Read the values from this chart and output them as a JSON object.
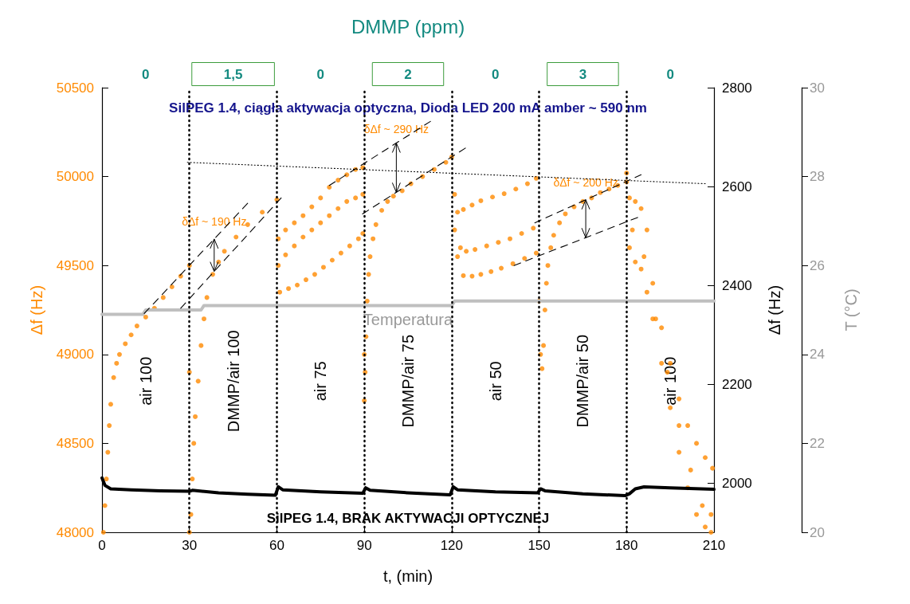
{
  "chart_data": {
    "type": "scatter",
    "title": "DMMP (ppm)",
    "xlabel": "t, (min)",
    "ylabel": "Δf (Hz)",
    "y2label": "Δf (Hz)",
    "y3label": "T (°C)",
    "xlim": [
      0,
      210
    ],
    "xticks": [
      0,
      30,
      60,
      90,
      120,
      150,
      180,
      210
    ],
    "ylim": [
      48000,
      50500
    ],
    "yticks": [
      48000,
      48500,
      49000,
      49500,
      50000,
      50500
    ],
    "y2lim": [
      1900,
      2800
    ],
    "y2ticks": [
      2000,
      2200,
      2400,
      2600,
      2800
    ],
    "y3lim": [
      20,
      30
    ],
    "y3ticks": [
      20,
      22,
      24,
      26,
      28,
      30
    ],
    "series": [
      {
        "color": "#ff8a00",
        "marker": "circle",
        "x": [
          0.5,
          1,
          1.5,
          2,
          2.5,
          3,
          4,
          5,
          6,
          8,
          10,
          12,
          15,
          18,
          21,
          24,
          27,
          30,
          30,
          30,
          30.5,
          31,
          31.5,
          32,
          33,
          34,
          35,
          36,
          38,
          40,
          42,
          46,
          50,
          55,
          60,
          60.5,
          63,
          66,
          69,
          72,
          75,
          78,
          81,
          84,
          87,
          89.5,
          60.5,
          63,
          66,
          69,
          72,
          75,
          78,
          81,
          84,
          87,
          89.5,
          61,
          64,
          67,
          70,
          73,
          76,
          79,
          82,
          85,
          88,
          89.5,
          90,
          90,
          90.3,
          90.6,
          91,
          91.5,
          92,
          93,
          94,
          96,
          98,
          100,
          103,
          106,
          110,
          114,
          118,
          120,
          121,
          122,
          124,
          127,
          130,
          134,
          138,
          142,
          146,
          149,
          121,
          123,
          125,
          128,
          132,
          136,
          140,
          144,
          148,
          122,
          124,
          127,
          130,
          133.5,
          137,
          141,
          145,
          149,
          150,
          150.5,
          151,
          151.5,
          152,
          152.5,
          153,
          154,
          155,
          157,
          159,
          162,
          165,
          168,
          171,
          174,
          177,
          180,
          180,
          181,
          183,
          185,
          187,
          189,
          192,
          195,
          198,
          201,
          204,
          207,
          209.5,
          182,
          186,
          190,
          194,
          198,
          202,
          206,
          209,
          181,
          183,
          185,
          187,
          189,
          192,
          195,
          198,
          201,
          204,
          207,
          209
        ],
        "values": [
          48000,
          48150,
          48300,
          48450,
          48600,
          48720,
          48870,
          48950,
          49000,
          49060,
          49110,
          49160,
          49210,
          49260,
          49320,
          49380,
          49440,
          49500,
          48000,
          48900,
          48100,
          48300,
          48500,
          48650,
          48850,
          49050,
          49200,
          49320,
          49450,
          49520,
          49580,
          49660,
          49730,
          49800,
          49870,
          49650,
          49700,
          49740,
          49780,
          49830,
          49880,
          49940,
          49980,
          50010,
          50040,
          50050,
          49500,
          49560,
          49610,
          49660,
          49700,
          49740,
          49780,
          49820,
          49860,
          49880,
          49900,
          49350,
          49370,
          49390,
          49420,
          49450,
          49490,
          49530,
          49570,
          49610,
          49650,
          49680,
          48740,
          49000,
          48900,
          49100,
          49300,
          49450,
          49550,
          49650,
          49730,
          49810,
          49860,
          49890,
          49920,
          49960,
          50000,
          50040,
          50080,
          50110,
          49900,
          49800,
          49815,
          49840,
          49864,
          49885,
          49904,
          49930,
          49960,
          49990,
          49700,
          49600,
          49580,
          49590,
          49610,
          49630,
          49650,
          49680,
          49710,
          49550,
          49443,
          49440,
          49450,
          49466,
          49485,
          49510,
          49540,
          49570,
          49300,
          49000,
          48920,
          49050,
          49250,
          49400,
          49500,
          49600,
          49670,
          49740,
          49790,
          49830,
          49860,
          49880,
          49910,
          49930,
          49950,
          49970,
          50020,
          49880,
          49860,
          49820,
          49700,
          49400,
          49150,
          48950,
          48750,
          48600,
          48500,
          48420,
          48360,
          49700,
          49550,
          49200,
          48900,
          48600,
          48350,
          48150,
          48100,
          49600,
          49520,
          49480,
          49350,
          49200,
          48950,
          48700,
          48450,
          48250,
          48100,
          48030,
          48000
        ]
      },
      {
        "type": "line",
        "axis": "y2",
        "color": "#000000",
        "marker": "none",
        "line_style": "solid",
        "x": [
          0,
          1,
          3,
          10,
          20,
          30,
          31,
          40,
          50,
          59.5,
          60.5,
          62,
          75,
          89.5,
          90.5,
          92,
          105,
          119.5,
          120.5,
          122,
          135,
          149.5,
          150.5,
          152,
          165,
          179.5,
          181,
          183,
          186,
          195,
          210
        ],
        "values": [
          2010,
          1995,
          1988,
          1986,
          1984,
          1983,
          1985,
          1980,
          1977,
          1975,
          1992,
          1986,
          1982,
          1979,
          1990,
          1985,
          1980,
          1976,
          1992,
          1986,
          1982,
          1980,
          1988,
          1984,
          1978,
          1974,
          1978,
          1988,
          1992,
          1990,
          1987
        ]
      },
      {
        "type": "line",
        "axis": "y3",
        "name": "Temperatura",
        "color": "#bfbfbf",
        "marker": "none",
        "line_style": "solid",
        "x": [
          0,
          14,
          15,
          34,
          35,
          105,
          120,
          121,
          165,
          210
        ],
        "values": [
          24.9,
          24.9,
          25.0,
          25.0,
          25.1,
          25.1,
          25.1,
          25.2,
          25.2,
          25.2
        ]
      },
      {
        "type": "line",
        "color": "#000000",
        "marker": "none",
        "line_style": "dashed",
        "x": [
          14.5,
          50
        ],
        "values": [
          49230,
          49850
        ]
      },
      {
        "type": "line",
        "color": "#000000",
        "marker": "none",
        "line_style": "dashed",
        "x": [
          27,
          61.5
        ],
        "values": [
          49260,
          49880
        ]
      },
      {
        "type": "line",
        "color": "#000000",
        "marker": "none",
        "line_style": "dashed",
        "x": [
          78,
          112.7
        ],
        "values": [
          49950,
          50310
        ]
      },
      {
        "type": "line",
        "color": "#000000",
        "marker": "none",
        "line_style": "dashed",
        "x": [
          89.4,
          124.7
        ],
        "values": [
          49790,
          50160
        ]
      },
      {
        "type": "line",
        "color": "#000000",
        "marker": "none",
        "line_style": "dashed",
        "x": [
          148.5,
          185
        ],
        "values": [
          49740,
          50010
        ]
      },
      {
        "type": "line",
        "color": "#000000",
        "marker": "none",
        "line_style": "dashed",
        "x": [
          141.4,
          183.8
        ],
        "values": [
          49500,
          49770
        ]
      },
      {
        "type": "line",
        "color": "#000000",
        "marker": "none",
        "line_style": "dotted",
        "x": [
          29.3,
          207
        ],
        "values": [
          50080,
          49960
        ]
      }
    ],
    "ref_lines": [
      {
        "axis": "x",
        "value": 30,
        "line_style": "dotted",
        "color": "#000000"
      },
      {
        "axis": "x",
        "value": 60,
        "line_style": "dotted",
        "color": "#000000"
      },
      {
        "axis": "x",
        "value": 90,
        "line_style": "dotted",
        "color": "#000000"
      },
      {
        "axis": "x",
        "value": 120,
        "line_style": "dotted",
        "color": "#000000"
      },
      {
        "axis": "x",
        "value": 150,
        "line_style": "dotted",
        "color": "#000000"
      },
      {
        "axis": "x",
        "value": 180,
        "line_style": "dotted",
        "color": "#000000"
      }
    ],
    "annotations": [
      "SilPEG 1.4, ciągła aktywacja optyczna, Dioda LED 200 mA amber ~ 590 nm",
      "0",
      "1,5",
      "0",
      "2",
      "0",
      "3",
      "0",
      "air 100",
      "DMMP/air 100",
      "air 75",
      "DMMP/air 75",
      "air 50",
      "DMMP/air 50",
      "air 100",
      {
        "text": "δΔf ~ 190 Hz",
        "x": 38.5,
        "y": 49650
      },
      {
        "text": "δΔf ~ 290 Hz",
        "x": 101,
        "y": 50190
      },
      {
        "text": "δΔf ~ 200 Hz",
        "x": 166,
        "y": 49870
      },
      "SilPEG 1.4, BRAK AKTYWACJI OPTYCZNEJ"
    ]
  }
}
